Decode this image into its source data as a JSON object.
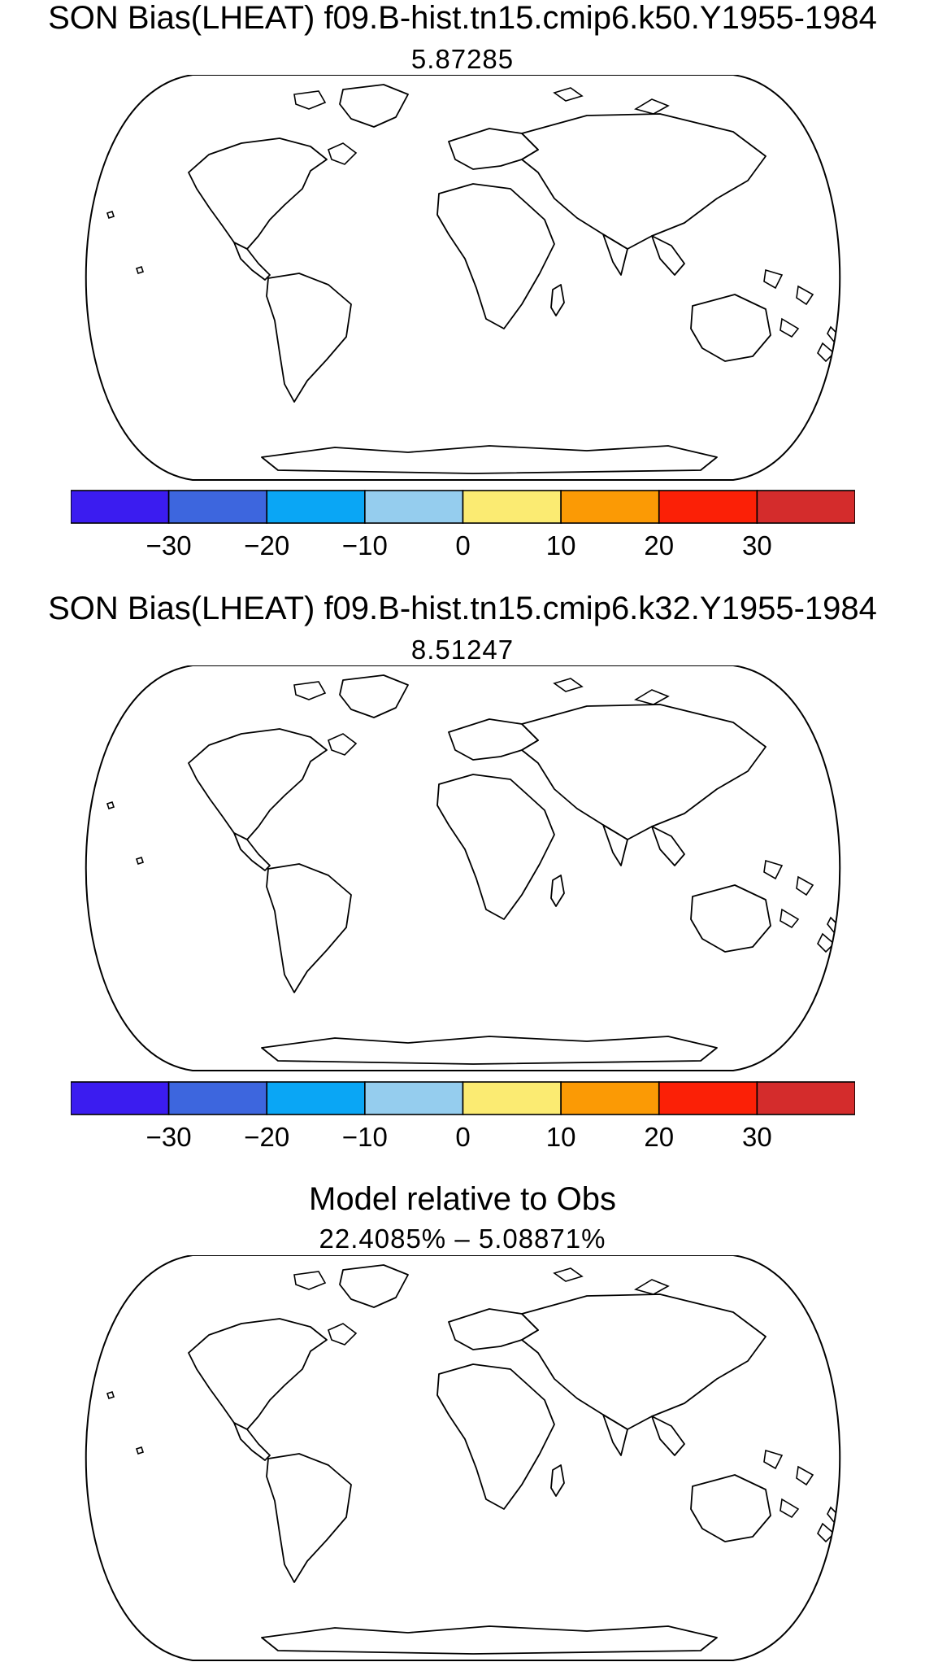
{
  "panels": [
    {
      "title": "SON Bias(LHEAT) f09.B-hist.tn15.cmip6.k50.Y1955-1984",
      "subtitle": "5.87285",
      "type": "bias"
    },
    {
      "title": "SON Bias(LHEAT) f09.B-hist.tn15.cmip6.k32.Y1955-1984",
      "subtitle": "8.51247",
      "type": "bias"
    },
    {
      "title": "Model relative to Obs",
      "subtitle": "22.4085% – 5.08871%",
      "type": "relative"
    }
  ],
  "colorbar": {
    "bins": [
      {
        "min": -40,
        "max": -30,
        "color": "#3b1cf0"
      },
      {
        "min": -30,
        "max": -20,
        "color": "#3d66de"
      },
      {
        "min": -20,
        "max": -10,
        "color": "#0aa6f5"
      },
      {
        "min": -10,
        "max": 0,
        "color": "#95cdee"
      },
      {
        "min": 0,
        "max": 10,
        "color": "#fbeb72"
      },
      {
        "min": 10,
        "max": 20,
        "color": "#fb9a05"
      },
      {
        "min": 20,
        "max": 30,
        "color": "#fb2006"
      },
      {
        "min": 30,
        "max": 40,
        "color": "#d42c2c"
      }
    ],
    "labels": [
      "−30",
      "−20",
      "−10",
      "0",
      "10",
      "20",
      "30"
    ]
  },
  "relative_colors": {
    "better": "#1fee1f",
    "worse": "#f04040"
  }
}
